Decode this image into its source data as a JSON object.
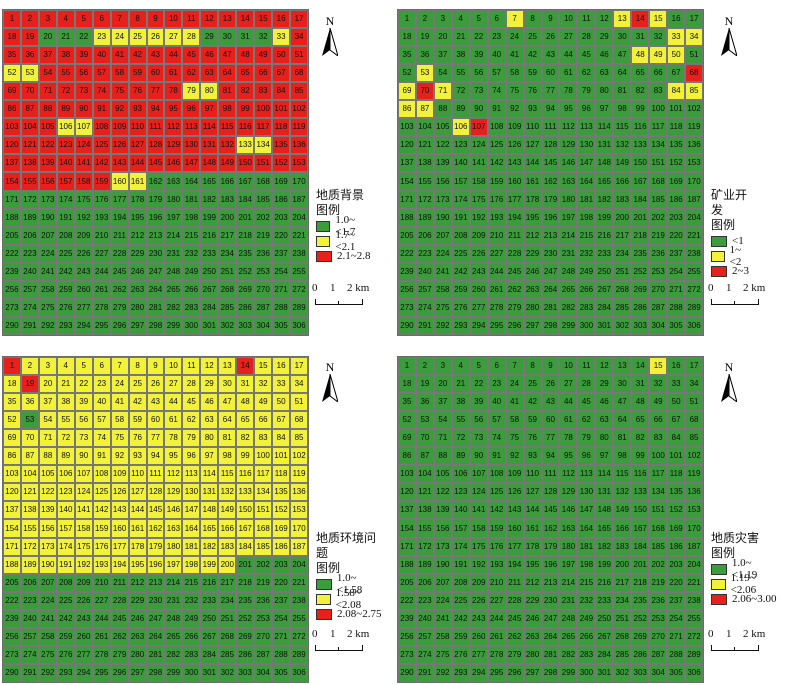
{
  "colors": {
    "1": "#3a9c3a",
    "2": "#f2f23a",
    "3": "#e8201c"
  },
  "north_label": "N",
  "scale": {
    "labels": [
      "0",
      "1",
      "2 km"
    ]
  },
  "panels": [
    {
      "id": "geological-background",
      "legend_title_1": "地质背景",
      "legend_title_2": "图例",
      "classes": [
        "1.0~<1.7",
        "1.7~<2.1",
        "2.1~2.8"
      ],
      "class_map": "33333333333333333331112222221111233333333333333333322333333333333333333333333322333333333333333333333333322333333333333333333333333322333333333333333333333333322111111111111111111"
    },
    {
      "id": "mineral-development",
      "legend_title_1": "矿业开发",
      "legend_title_2": "图例",
      "classes": [
        "<1",
        "1~<2",
        "2~3"
      ],
      "class_map": "11111121111123211111111111111111221111111111111222112111111111111113232111111111111222211111111111111111123111111111111111111111111111111111111111111111111111111111111111111111111111111111111111111111"
    },
    {
      "id": "geological-environment-problems",
      "legend_title_1": "地质环境问题",
      "legend_title_2": "图例",
      "classes": [
        "1.0~<1.58",
        "1.58~<2.08",
        "2.08~2.75"
      ],
      "class_map": "32222222222223222232222222222222222222222222222222221222222222222222222222222222222222222222222222222222222222222222222222222222222222222222222222222222222222222222222222222222222222222222222222222222"
    },
    {
      "id": "geological-hazard",
      "legend_title_1": "地质灾害",
      "legend_title_2": "图例",
      "classes": [
        "1.0~<1.19",
        "1.19~<2.06",
        "2.06~3.00"
      ],
      "class_map": "11111111111111211111111111111111111111111111111111111111111111111111111111111111111111111111111111111111111111111111111111111111111111111111111111111111111111111111111111111111111111111111111111111111"
    }
  ]
}
